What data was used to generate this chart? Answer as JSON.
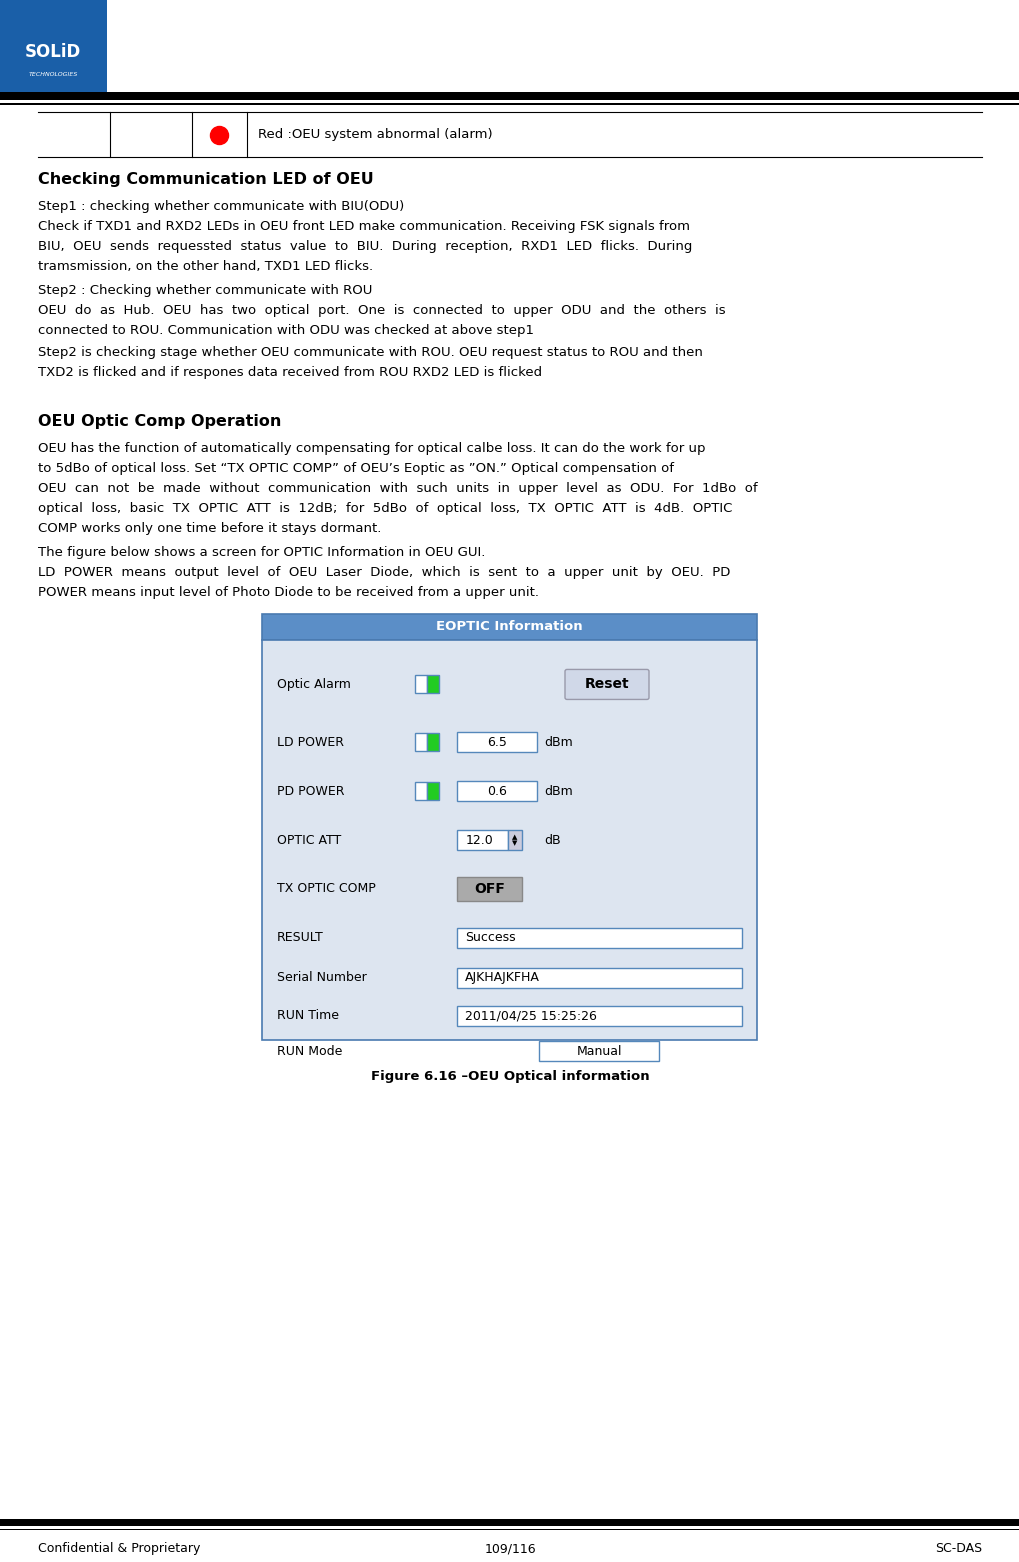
{
  "page_width": 10.2,
  "page_height": 15.62,
  "dpi": 100,
  "bg_color": "#ffffff",
  "logo_bg": "#1a5fa8",
  "footer_text_left": "Confidential & Proprietary",
  "footer_text_center": "109/116",
  "footer_text_right": "SC-DAS",
  "section1_title": "Checking Communication LED of OEU",
  "section1_p1": "Step1 : checking whether communicate with BIU(ODU)",
  "section1_p2a": "Check if TXD1 and RXD2 LEDs in OEU front LED make communication. Receiving FSK signals from",
  "section1_p2b": "BIU,  OEU  sends  requessted  status  value  to  BIU.  During  reception,  RXD1  LED  flicks.  During",
  "section1_p2c": "tramsmission, on the other hand, TXD1 LED flicks.",
  "section1_p3": "Step2 : Checking whether communicate with ROU",
  "section1_p4a": "OEU  do  as  Hub.  OEU  has  two  optical  port.  One  is  connected  to  upper  ODU  and  the  others  is",
  "section1_p4b": "connected to ROU. Communication with ODU was checked at above step1",
  "section1_p5a": "Step2 is checking stage whether OEU communicate with ROU. OEU request status to ROU and then",
  "section1_p5b": "TXD2 is flicked and if respones data received from ROU RXD2 LED is flicked",
  "section2_title": "OEU Optic Comp Operation",
  "section2_p1a": "OEU has the function of automatically compensating for optical calbe loss. It can do the work for up",
  "section2_p1b": "to 5dBo of optical loss. Set “TX OPTIC COMP” of OEU’s Eoptic as ”ON.” Optical compensation of",
  "section2_p1c": "OEU  can  not  be  made  without  communication  with  such  units  in  upper  level  as  ODU.  For  1dBo  of",
  "section2_p1d": "optical  loss,  basic  TX  OPTIC  ATT  is  12dB;  for  5dBo  of  optical  loss,  TX  OPTIC  ATT  is  4dB.  OPTIC",
  "section2_p1e": "COMP works only one time before it stays dormant.",
  "section2_p2": "The figure below shows a screen for OPTIC Information in OEU GUI.",
  "section2_p3a": "LD  POWER  means  output  level  of  OEU  Laser  Diode,  which  is  sent  to  a  upper  unit  by  OEU.  PD",
  "section2_p3b": "POWER means input level of Photo Diode to be received from a upper unit.",
  "figure_caption": "Figure 6.16 –OEU Optical information",
  "table_red_label": "Red :OEU system abnormal (alarm)"
}
